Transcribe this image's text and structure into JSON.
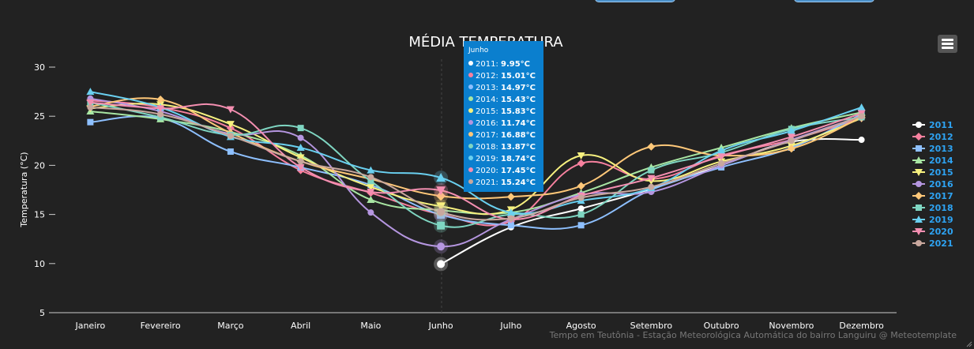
{
  "page": {
    "credits": "Tempo em Teutônia - Estação Meteorológica Automática do bairro Languiru @ Meteotemplate"
  },
  "tooltip": {
    "title": "Junho",
    "rows": [
      {
        "label": "2011:",
        "value": "9.95°C"
      },
      {
        "label": "2012:",
        "value": "15.01°C"
      },
      {
        "label": "2013:",
        "value": "14.97°C"
      },
      {
        "label": "2014:",
        "value": "15.43°C"
      },
      {
        "label": "2015:",
        "value": "15.83°C"
      },
      {
        "label": "2016:",
        "value": "11.74°C"
      },
      {
        "label": "2017:",
        "value": "16.88°C"
      },
      {
        "label": "2018:",
        "value": "13.87°C"
      },
      {
        "label": "2019:",
        "value": "18.74°C"
      },
      {
        "label": "2020:",
        "value": "17.45°C"
      },
      {
        "label": "2021:",
        "value": "15.24°C"
      }
    ]
  },
  "chart_data": {
    "type": "line",
    "title": "MÉDIA TEMPERATURA",
    "ylabel": "Temperatura (°C)",
    "xlabel": "",
    "ylim": [
      5,
      30
    ],
    "yticks": [
      5,
      10,
      15,
      20,
      25,
      30
    ],
    "grid": false,
    "legend_position": "right",
    "categories": [
      "Janeiro",
      "Fevereiro",
      "Março",
      "Abril",
      "Maio",
      "Junho",
      "Julho",
      "Agosto",
      "Setembro",
      "Outubro",
      "Novembro",
      "Dezembro"
    ],
    "series": [
      {
        "name": "2011",
        "color": "#ffffff",
        "marker": "circle",
        "values": [
          null,
          null,
          null,
          null,
          null,
          9.95,
          13.7,
          15.6,
          17.6,
          20.0,
          22.4,
          22.6
        ]
      },
      {
        "name": "2012",
        "color": "#f7819f",
        "marker": "diamond",
        "values": [
          26.6,
          25.9,
          23.8,
          19.5,
          17.2,
          15.01,
          14.3,
          20.2,
          18.6,
          21.0,
          22.6,
          24.8
        ]
      },
      {
        "name": "2013",
        "color": "#8ec0ff",
        "marker": "square",
        "values": [
          24.4,
          24.8,
          21.4,
          19.8,
          18.0,
          14.97,
          13.9,
          13.9,
          17.5,
          19.8,
          21.8,
          25.2
        ]
      },
      {
        "name": "2014",
        "color": "#a8e6a3",
        "marker": "triangle",
        "values": [
          25.5,
          24.7,
          23.4,
          21.0,
          16.5,
          15.43,
          15.2,
          17.2,
          19.8,
          21.8,
          23.8,
          25.4
        ]
      },
      {
        "name": "2015",
        "color": "#f7f17f",
        "marker": "triangle-down",
        "values": [
          25.8,
          26.2,
          24.2,
          20.8,
          17.8,
          15.83,
          15.5,
          21.0,
          18.4,
          20.4,
          22.0,
          24.8
        ]
      },
      {
        "name": "2016",
        "color": "#b596e0",
        "marker": "circle",
        "values": [
          26.8,
          25.5,
          23.2,
          22.8,
          15.2,
          11.74,
          14.5,
          17.0,
          17.3,
          20.0,
          22.6,
          25.0
        ]
      },
      {
        "name": "2017",
        "color": "#ffc879",
        "marker": "diamond",
        "values": [
          26.0,
          26.7,
          23.3,
          20.4,
          18.6,
          16.88,
          16.8,
          17.9,
          21.9,
          21.0,
          21.7,
          24.9
        ]
      },
      {
        "name": "2018",
        "color": "#7fd6c2",
        "marker": "square",
        "values": [
          26.4,
          24.9,
          23.1,
          23.8,
          18.4,
          13.87,
          15.0,
          15.0,
          19.5,
          21.3,
          23.7,
          24.9
        ]
      },
      {
        "name": "2019",
        "color": "#6ad0f0",
        "marker": "triangle",
        "values": [
          27.5,
          25.9,
          22.9,
          21.8,
          19.5,
          18.74,
          15.2,
          16.4,
          17.7,
          21.5,
          23.5,
          25.9
        ]
      },
      {
        "name": "2020",
        "color": "#f48fb1",
        "marker": "triangle-down",
        "values": [
          26.4,
          25.8,
          25.7,
          19.8,
          17.3,
          17.45,
          14.5,
          16.9,
          18.7,
          20.9,
          22.9,
          25.3
        ]
      },
      {
        "name": "2021",
        "color": "#c9a89e",
        "marker": "circle",
        "values": [
          25.9,
          25.2,
          23.0,
          20.4,
          18.8,
          15.24,
          14.6,
          16.7,
          17.8,
          20.2,
          22.5,
          25.0
        ]
      }
    ]
  }
}
